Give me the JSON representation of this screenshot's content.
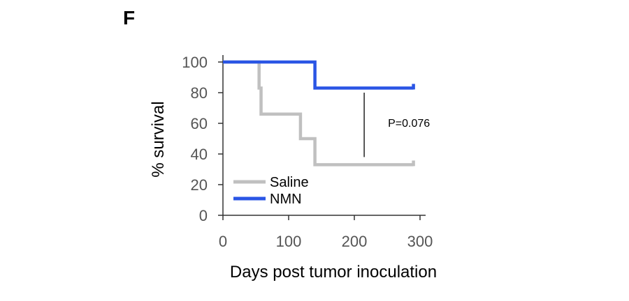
{
  "panel_label": "F",
  "chart_data": {
    "type": "line",
    "step": true,
    "xlabel": "Days post tumor inoculation",
    "ylabel": "% survival",
    "xlim": [
      0,
      300
    ],
    "ylim": [
      0,
      100
    ],
    "xticks": [
      0,
      100,
      200,
      300
    ],
    "yticks": [
      0,
      20,
      40,
      60,
      80,
      100
    ],
    "legend_position": "bottom-left",
    "series": [
      {
        "name": "Saline",
        "color": "#c0c0c0",
        "x": [
          0,
          55,
          55,
          58,
          58,
          118,
          118,
          140,
          140,
          290
        ],
        "y": [
          100,
          100,
          83,
          83,
          66,
          66,
          50,
          50,
          33,
          33
        ]
      },
      {
        "name": "NMN",
        "color": "#2a55e5",
        "x": [
          0,
          140,
          140,
          290
        ],
        "y": [
          100,
          100,
          83,
          83
        ]
      }
    ],
    "annotation": {
      "text": "P=0.076",
      "x": 215,
      "y_low": 38,
      "y_high": 80
    }
  }
}
